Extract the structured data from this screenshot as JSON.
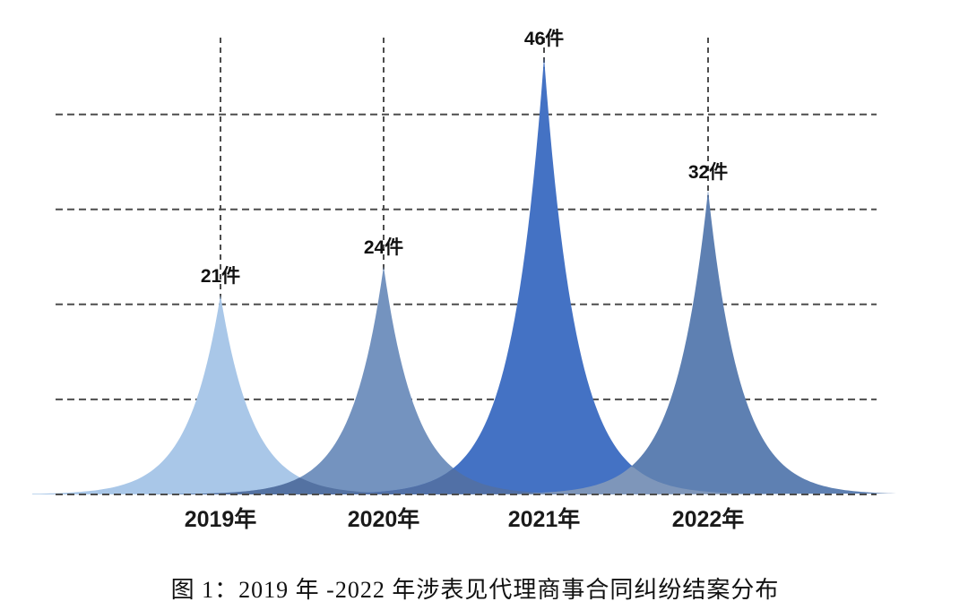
{
  "chart_data": {
    "type": "area",
    "variant": "overlapping-peak-spikes",
    "title": "图 1：2019 年 -2022 年涉表见代理商事合同纠纷结案分布",
    "categories": [
      "2019年",
      "2020年",
      "2021年",
      "2022年"
    ],
    "values": [
      21,
      24,
      46,
      32
    ],
    "value_labels": [
      "21件",
      "24件",
      "46件",
      "32件"
    ],
    "unit": "件",
    "series_colors": [
      "#A9C7E8",
      "#7493BF",
      "#4472C4",
      "#5E80B2"
    ],
    "overlap_colors": [
      "#5472A2",
      "#5170A6",
      "#7E96BA"
    ],
    "xlabel": "",
    "ylabel": "",
    "ylim": [
      0,
      48
    ],
    "grid_interval": 10,
    "grid": "dashed-horizontal-and-vertical-guides",
    "gridline_color": "#4D4D4D",
    "label_color": "#111111",
    "background": "#FFFFFF",
    "legend": "none"
  },
  "caption": {
    "text": "图 1：2019 年 -2022 年涉表见代理商事合同纠纷结案分布"
  }
}
